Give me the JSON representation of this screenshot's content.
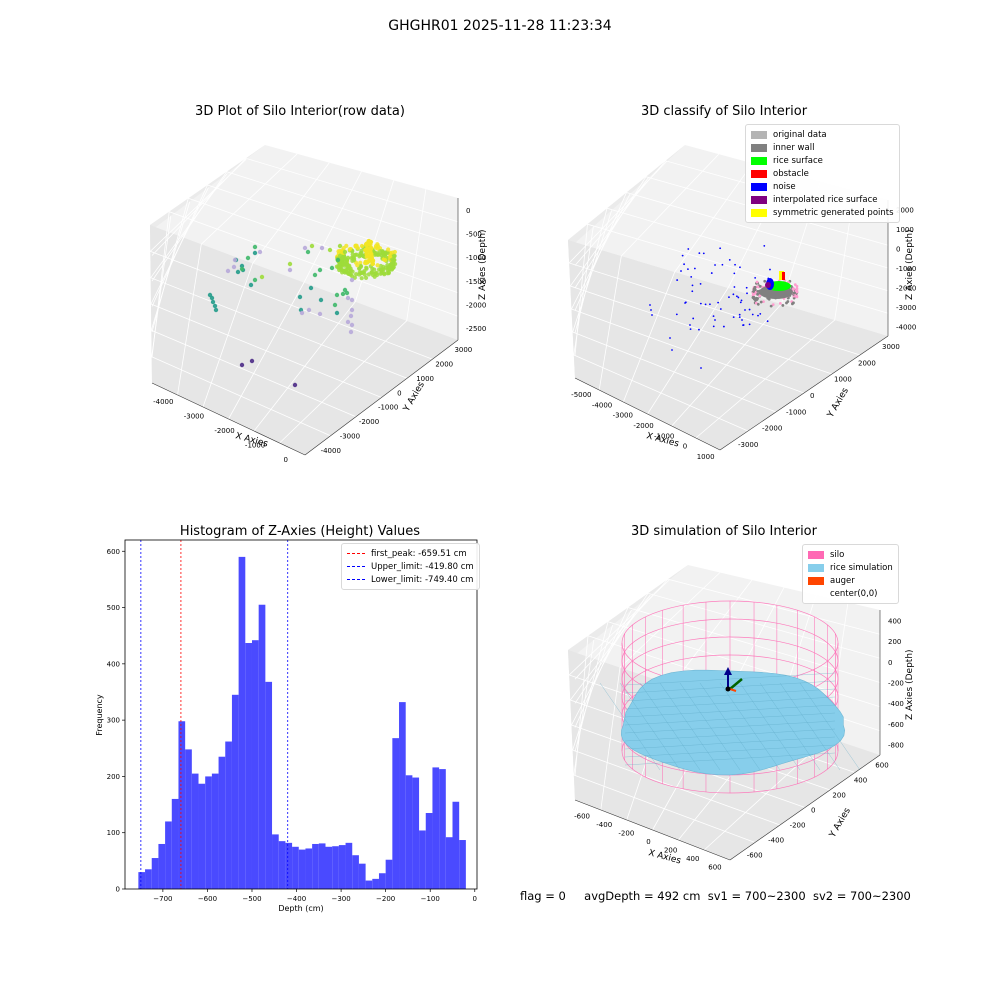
{
  "suptitle": "GHGHR01 2025-11-28 11:23:34",
  "footer": {
    "flag": "flag = 0",
    "avg": "avgDepth = 492 cm",
    "sv1": "sv1 = 700~2300",
    "sv2": "sv2 = 700~2300"
  },
  "chart_data": [
    {
      "type": "scatter",
      "title": "3D Plot of Silo Interior(row data)",
      "xlabel": "X Axies",
      "ylabel": "Y Axies",
      "zlabel": "Z Axies (Depth)",
      "x_ticks": [
        "-4000",
        "-3000",
        "-2000",
        "-1000",
        "0"
      ],
      "y_ticks": [
        "-4000",
        "-3000",
        "-2000",
        "-1000",
        "0",
        "1000",
        "2000",
        "3000"
      ],
      "z_ticks": [
        "0",
        "-500",
        "-1000",
        "-1500",
        "-2000",
        "-2500"
      ],
      "colors": {
        "ring": "#9ddc3a",
        "ring_top": "#f2e524",
        "mid": "#3fb86a",
        "teal": "#229b8a",
        "lavender": "#b7a8d9",
        "deep": "#4b2a86"
      }
    },
    {
      "type": "scatter",
      "title": "3D classify of Silo Interior",
      "xlabel": "X Axies",
      "ylabel": "Y Axies",
      "zlabel": "Z Axies (Depth)",
      "x_ticks": [
        "-5000",
        "-4000",
        "-3000",
        "-2000",
        "-1000",
        "0",
        "1000"
      ],
      "y_ticks": [
        "-3000",
        "-2000",
        "-1000",
        "0",
        "1000",
        "2000",
        "3000"
      ],
      "z_ticks": [
        "2000",
        "1000",
        "0",
        "-1000",
        "-2000",
        "-3000",
        "-4000"
      ],
      "legend": [
        {
          "label": "original data",
          "color": "#b4b4b4"
        },
        {
          "label": "inner wall",
          "color": "#808080"
        },
        {
          "label": "rice surface",
          "color": "#00ff00"
        },
        {
          "label": "obstacle",
          "color": "#ff0000"
        },
        {
          "label": "noise",
          "color": "#0000ff"
        },
        {
          "label": "interpolated rice surface",
          "color": "#800080"
        },
        {
          "label": "symmetric generated points",
          "color": "#ffff00"
        }
      ],
      "legend_position": "top-right"
    },
    {
      "type": "bar",
      "title": "Histogram of Z-Axies (Height) Values",
      "xlabel": "Depth (cm)",
      "ylabel": "Frequency",
      "bin_width": 15,
      "x_start": -755,
      "xlim": [
        -785,
        5
      ],
      "ylim": [
        0,
        620
      ],
      "x_ticks": [
        -700,
        -600,
        -500,
        -400,
        -300,
        -200,
        -100,
        0
      ],
      "y_ticks": [
        0,
        100,
        200,
        300,
        400,
        500,
        600
      ],
      "bar_color": "#4a4aff",
      "values": [
        30,
        35,
        55,
        80,
        120,
        160,
        298,
        248,
        205,
        187,
        200,
        205,
        235,
        262,
        345,
        590,
        437,
        442,
        505,
        368,
        97,
        85,
        82,
        75,
        70,
        72,
        80,
        81,
        75,
        76,
        78,
        82,
        60,
        45,
        15,
        18,
        28,
        52,
        268,
        332,
        202,
        198,
        104,
        135,
        216,
        213,
        92,
        155,
        87
      ],
      "vlines": [
        {
          "label": "first_peak: -659.51 cm",
          "x": -659.51,
          "color": "#ff0000"
        },
        {
          "label": "Upper_limit: -419.80 cm",
          "x": -419.8,
          "color": "#0000ff"
        },
        {
          "label": "Lower_limit: -749.40 cm",
          "x": -749.4,
          "color": "#0000ff"
        }
      ],
      "legend_position": "top-right"
    },
    {
      "type": "area",
      "title": "3D simulation of Silo Interior",
      "xlabel": "X Axies",
      "ylabel": "Y Axies",
      "zlabel": "Z Axies (Depth)",
      "x_ticks": [
        "-600",
        "-400",
        "-200",
        "0",
        "200",
        "400",
        "600"
      ],
      "y_ticks": [
        "-600",
        "-400",
        "-200",
        "0",
        "200",
        "400",
        "600"
      ],
      "z_ticks": [
        "400",
        "200",
        "0",
        "-200",
        "-400",
        "-600",
        "-800"
      ],
      "legend": [
        {
          "label": "silo",
          "color": "#ff69b4"
        },
        {
          "label": "rice simulation",
          "color": "#87ceeb"
        },
        {
          "label": "auger",
          "color": "#ff4500"
        },
        {
          "label": "center(0,0)",
          "color": ""
        }
      ],
      "legend_position": "top-right"
    }
  ]
}
